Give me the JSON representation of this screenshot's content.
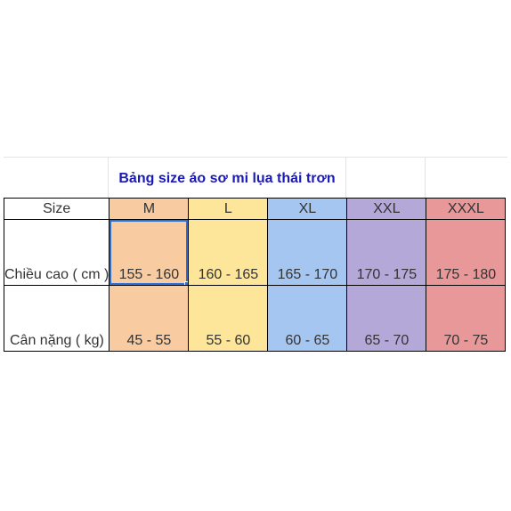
{
  "sheet": {
    "title": "Bảng size áo sơ mi lụa thái trơn",
    "header": {
      "label": "Size",
      "sizes": [
        "M",
        "L",
        "XL",
        "XXL",
        "XXXL"
      ]
    },
    "rows": [
      {
        "label": "Chiều cao ( cm )",
        "values": [
          "155 - 160",
          "160 - 165",
          "165 - 170",
          "170 - 175",
          "175 - 180"
        ]
      },
      {
        "label": "Cân nặng ( kg)",
        "values": [
          "45 - 55",
          "55 - 60",
          "60 - 65",
          "65 - 70",
          "70 - 75"
        ]
      }
    ],
    "column_colors": [
      "#f8cba0",
      "#fde599",
      "#a6c6f2",
      "#b4a8d8",
      "#e89898"
    ],
    "selection_color": "#2a6fdb"
  }
}
